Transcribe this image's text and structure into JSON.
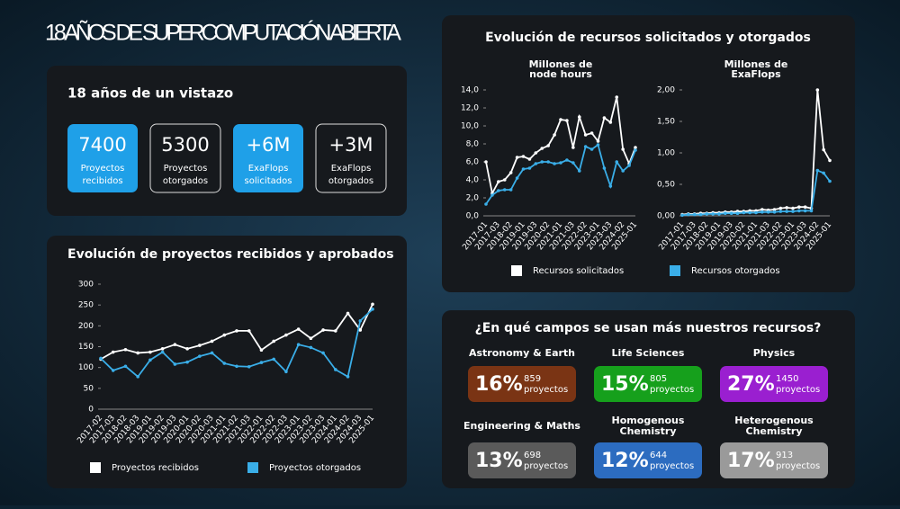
{
  "title": "18 AÑOS DE SUPERCOMPUTACIÓN ABIERTA",
  "summary": {
    "title": "18 años de un vistazo",
    "cards": [
      {
        "value": "7400",
        "label": [
          "Proyectos",
          "recibidos"
        ]
      },
      {
        "value": "5300",
        "label": [
          "Proyectos",
          "otorgados"
        ]
      },
      {
        "value": "+6M",
        "label": [
          "ExaFlops",
          "solicitados"
        ]
      },
      {
        "value": "+3M",
        "label": [
          "ExaFlops",
          "otorgados"
        ]
      }
    ]
  },
  "resources_title": "Evolución de recursos solicitados y otorgados",
  "chart_data": [
    {
      "type": "line",
      "title": "Evolución de proyectos recibidos y aprobados",
      "categories": [
        "2017-02",
        "2017-03",
        "2018-02",
        "2018-03",
        "2019-01",
        "2019-02",
        "2019-03",
        "2020-01",
        "2020-02",
        "2020-03",
        "2021-01",
        "2021-02",
        "2021-03",
        "2022-01",
        "2022-02",
        "2022-03",
        "2023-01",
        "2023-02",
        "2023-03",
        "2024-01",
        "2024-02",
        "2024-03",
        "2025-01"
      ],
      "series": [
        {
          "name": "Proyectos recibidos",
          "color": "#ffffff",
          "values": [
            120,
            137,
            143,
            135,
            137,
            145,
            155,
            145,
            153,
            163,
            178,
            188,
            188,
            142,
            163,
            178,
            192,
            170,
            190,
            188,
            230,
            190,
            252
          ]
        },
        {
          "name": "Proyectos otorgados",
          "color": "#3aaee8",
          "values": [
            122,
            93,
            103,
            78,
            118,
            137,
            108,
            113,
            127,
            135,
            110,
            103,
            102,
            112,
            120,
            90,
            155,
            148,
            135,
            95,
            78,
            212,
            240
          ]
        }
      ],
      "ylim": [
        0,
        300
      ],
      "yticks": [
        0,
        50,
        100,
        150,
        200,
        250,
        300
      ]
    },
    {
      "type": "line",
      "title": [
        "Millones de",
        "node hours"
      ],
      "categories": [
        "2017-01",
        null,
        "2017-03",
        null,
        "2018-02",
        null,
        "2019-01",
        null,
        "2019-03",
        null,
        "2020-02",
        null,
        "2021-01",
        null,
        "2021-03",
        null,
        "2022-02",
        null,
        "2023-01",
        null,
        "2023-03",
        null,
        "2024-02",
        null,
        "2025-01"
      ],
      "series": [
        {
          "name": "Recursos solicitados",
          "color": "#ffffff",
          "values": [
            6.0,
            2.5,
            3.8,
            4.0,
            4.8,
            6.5,
            6.6,
            6.3,
            7.0,
            7.5,
            7.8,
            9.0,
            10.7,
            10.6,
            7.6,
            11.0,
            9.0,
            9.2,
            8.3,
            10.9,
            10.4,
            13.2,
            7.4,
            5.8,
            7.6
          ]
        },
        {
          "name": "Recursos otorgados",
          "color": "#3aaee8",
          "values": [
            1.3,
            2.3,
            2.8,
            2.9,
            2.9,
            4.2,
            5.2,
            5.3,
            5.8,
            6.0,
            6.0,
            5.8,
            5.9,
            6.2,
            5.9,
            5.0,
            7.7,
            7.4,
            7.9,
            5.3,
            3.3,
            6.0,
            5.0,
            5.6,
            7.3
          ]
        }
      ],
      "ylim": [
        0,
        14
      ],
      "yticks": [
        {
          "value": 0,
          "label": "0,0"
        },
        {
          "value": 2,
          "label": "2,0"
        },
        {
          "value": 4,
          "label": "4,0"
        },
        {
          "value": 6,
          "label": "6,0"
        },
        {
          "value": 8,
          "label": "8,0"
        },
        {
          "value": 10,
          "label": "10,0"
        },
        {
          "value": 12,
          "label": "12,0"
        },
        {
          "value": 14,
          "label": "14,0"
        }
      ]
    },
    {
      "type": "line",
      "title": [
        "Millones de",
        "ExaFlops"
      ],
      "categories": [
        "2017-01",
        null,
        "2017-03",
        null,
        "2018-02",
        null,
        "2019-01",
        null,
        "2019-03",
        null,
        "2020-02",
        null,
        "2021-01",
        null,
        "2021-03",
        null,
        "2022-02",
        null,
        "2023-01",
        null,
        "2023-03",
        null,
        "2024-02",
        null,
        "2025-01"
      ],
      "series": [
        {
          "color": "#ffffff",
          "values": [
            0.02,
            0.03,
            0.03,
            0.04,
            0.04,
            0.05,
            0.05,
            0.06,
            0.06,
            0.07,
            0.07,
            0.08,
            0.08,
            0.1,
            0.09,
            0.1,
            0.12,
            0.13,
            0.12,
            0.14,
            0.14,
            0.12,
            2.0,
            1.05,
            0.88
          ]
        },
        {
          "color": "#3aaee8",
          "values": [
            0.01,
            0.02,
            0.02,
            0.02,
            0.03,
            0.03,
            0.03,
            0.04,
            0.04,
            0.04,
            0.05,
            0.05,
            0.05,
            0.06,
            0.06,
            0.06,
            0.07,
            0.07,
            0.07,
            0.08,
            0.08,
            0.08,
            0.72,
            0.68,
            0.55
          ]
        }
      ],
      "ylim": [
        0,
        2
      ],
      "yticks": [
        {
          "value": 0,
          "label": "0,00"
        },
        {
          "value": 0.5,
          "label": "0,50"
        },
        {
          "value": 1,
          "label": "1,00"
        },
        {
          "value": 1.5,
          "label": "1,50"
        },
        {
          "value": 2,
          "label": "2,00"
        }
      ]
    }
  ],
  "fields": {
    "title": "¿En qué campos se usan más nuestros recursos?",
    "items": [
      {
        "name": [
          "Astronomy & Earth"
        ],
        "percent": "16%",
        "count": "859",
        "unit": "proyectos",
        "color": "#7a3414"
      },
      {
        "name": [
          "Life Sciences"
        ],
        "percent": "15%",
        "count": "805",
        "unit": "proyectos",
        "color": "#16a01c"
      },
      {
        "name": [
          "Physics"
        ],
        "percent": "27%",
        "count": "1450",
        "unit": "proyectos",
        "color": "#9a1fd0"
      },
      {
        "name": [
          "Engineering & Maths"
        ],
        "percent": "13%",
        "count": "698",
        "unit": "proyectos",
        "color": "#5a5a5a"
      },
      {
        "name": [
          "Homogenous",
          "Chemistry"
        ],
        "percent": "12%",
        "count": "644",
        "unit": "proyectos",
        "color": "#2c6cc0"
      },
      {
        "name": [
          "Heterogenous",
          "Chemistry"
        ],
        "percent": "17%",
        "count": "913",
        "unit": "proyectos",
        "color": "#9a9a9a"
      }
    ]
  }
}
